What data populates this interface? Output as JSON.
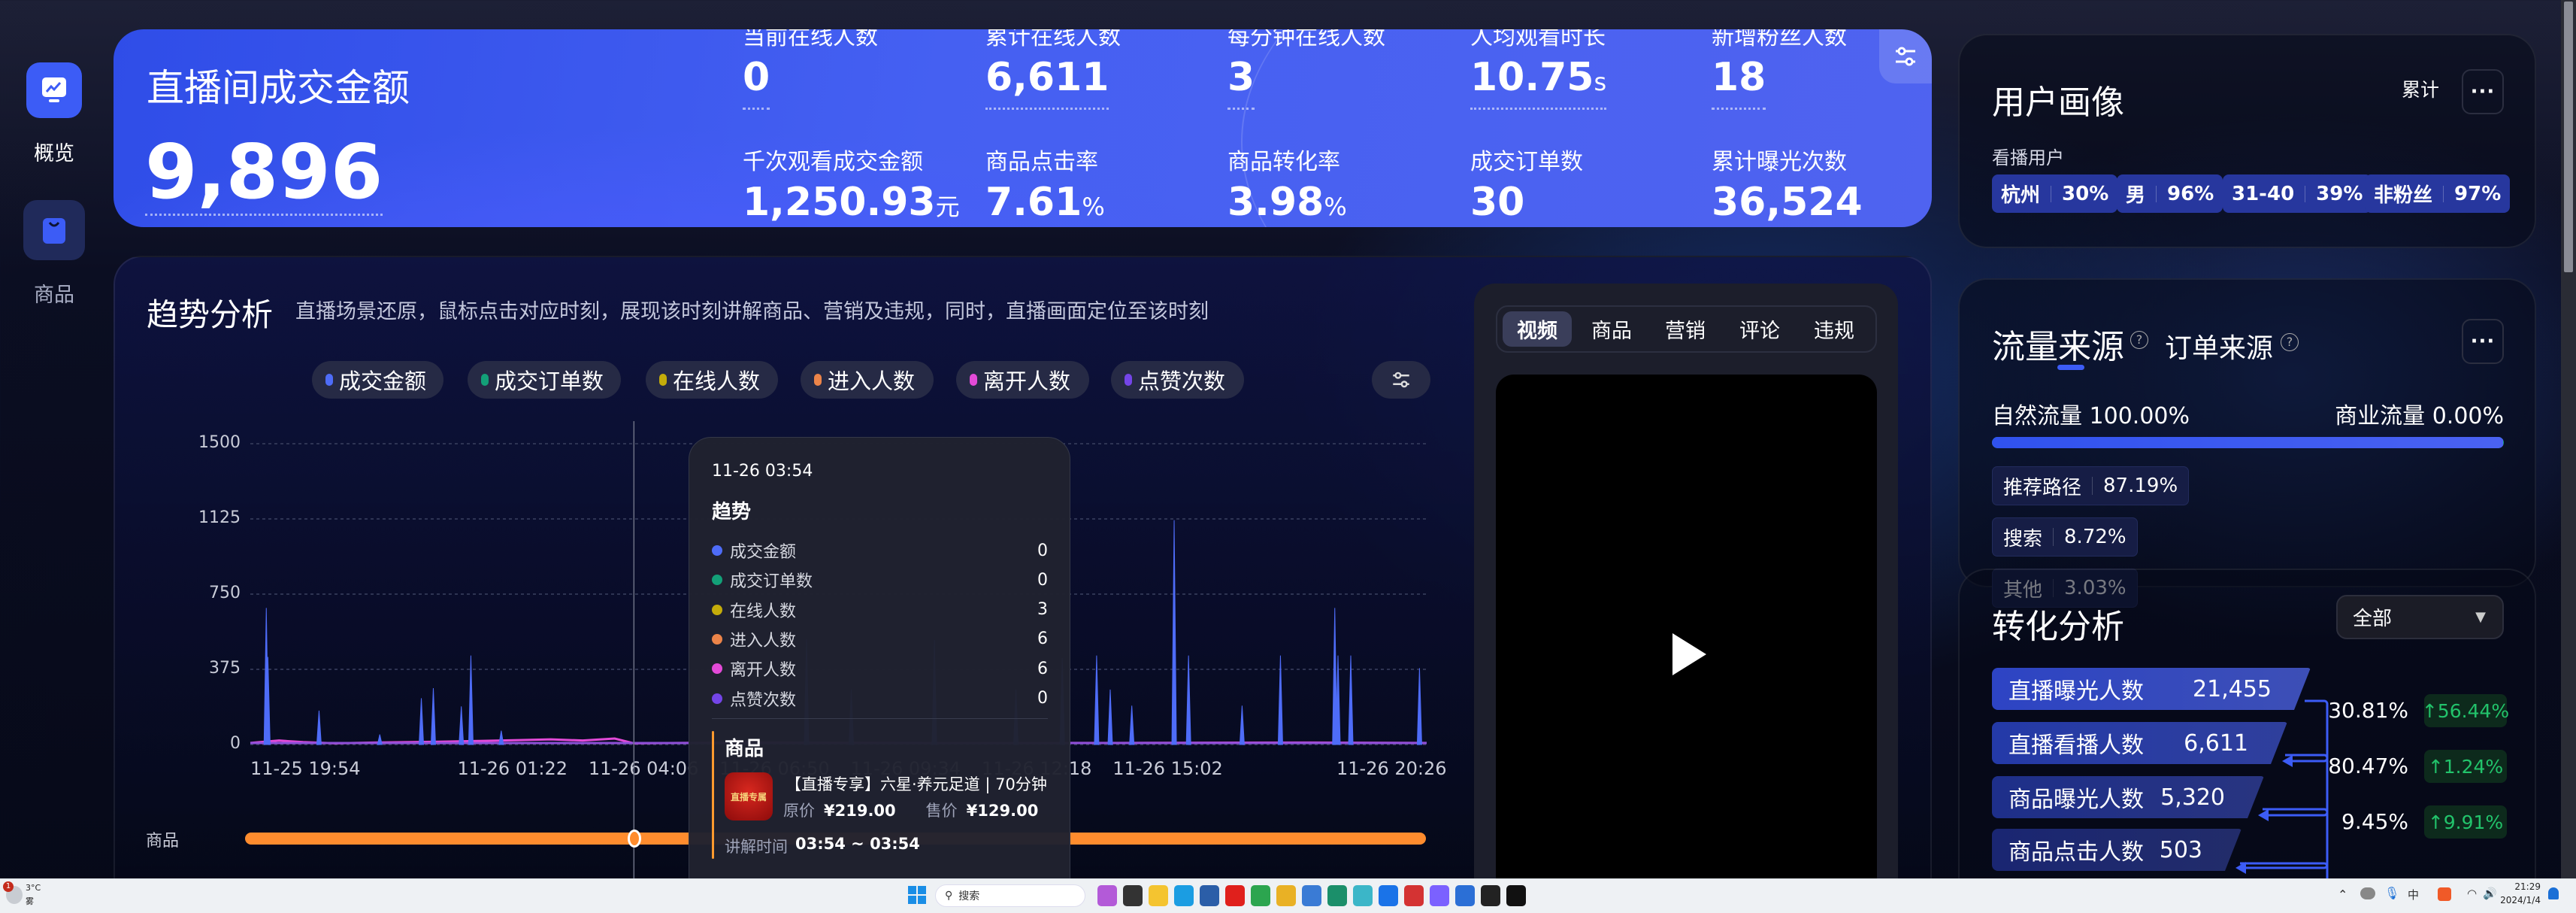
{
  "sidebar": {
    "items": [
      {
        "label": "概览",
        "icon": "chart-up-icon",
        "active": true
      },
      {
        "label": "商品",
        "icon": "shopping-bag-icon",
        "active": false
      }
    ]
  },
  "banner": {
    "title": "直播间成交金额",
    "value": "9,896",
    "metrics": [
      {
        "label": "当前在线人数",
        "value": "0",
        "unit": ""
      },
      {
        "label": "累计在线人数",
        "value": "6,611",
        "unit": ""
      },
      {
        "label": "每分钟在线人数",
        "value": "3",
        "unit": ""
      },
      {
        "label": "人均观看时长",
        "value": "10.75",
        "unit": "s"
      },
      {
        "label": "新增粉丝人数",
        "value": "18",
        "unit": ""
      },
      {
        "label": "千次观看成交金额",
        "value": "1,250.93",
        "unit": "元"
      },
      {
        "label": "商品点击率",
        "value": "7.61",
        "unit": "%"
      },
      {
        "label": "商品转化率",
        "value": "3.98",
        "unit": "%"
      },
      {
        "label": "成交订单数",
        "value": "30",
        "unit": ""
      },
      {
        "label": "累计曝光次数",
        "value": "36,524",
        "unit": ""
      }
    ],
    "settings_icon": "sliders-icon"
  },
  "trend": {
    "title": "趋势分析",
    "subtitle": "直播场景还原，鼠标点击对应时刻，展现该时刻讲解商品、营销及违规，同时，直播画面定位至该时刻",
    "chips": [
      {
        "label": "成交金额",
        "color": "#4e6cf8"
      },
      {
        "label": "成交订单数",
        "color": "#13a078"
      },
      {
        "label": "在线人数",
        "color": "#c4ac0a"
      },
      {
        "label": "进入人数",
        "color": "#ec8449"
      },
      {
        "label": "离开人数",
        "color": "#e34ad8"
      },
      {
        "label": "点赞次数",
        "color": "#7445e8"
      }
    ],
    "goods_track_label": "商品",
    "goods_track_color": "#ff8c2e",
    "tooltip": {
      "time": "11-26 03:54",
      "section_trend": "趋势",
      "rows": [
        {
          "label": "成交金额",
          "value": "0",
          "color": "#4e6cf8"
        },
        {
          "label": "成交订单数",
          "value": "0",
          "color": "#13a078"
        },
        {
          "label": "在线人数",
          "value": "3",
          "color": "#c4ac0a"
        },
        {
          "label": "进入人数",
          "value": "6",
          "color": "#ec8449"
        },
        {
          "label": "离开人数",
          "value": "6",
          "color": "#e34ad8"
        },
        {
          "label": "点赞次数",
          "value": "0",
          "color": "#7445e8"
        }
      ],
      "section_goods": "商品",
      "product_name": "【直播专享】六星·养元足道 | 70分钟",
      "product_image_text": "直播专属",
      "original_price_label": "原价",
      "original_price": "¥219.00",
      "sale_price_label": "售价",
      "sale_price": "¥129.00",
      "explain_label": "讲解时间",
      "explain_time": "03:54 ~ 03:54"
    }
  },
  "chart_data": {
    "type": "line",
    "title": "",
    "xlabel": "",
    "ylabel": "",
    "ylim": [
      0,
      1500
    ],
    "yticks": [
      "0",
      "375",
      "750",
      "1125",
      "1500"
    ],
    "x_range": [
      "11-25 19:54",
      "11-26 20:26"
    ],
    "xticks": [
      "11-25 19:54",
      "11-26 01:22",
      "11-26 04:06",
      "11-26 06:50",
      "11-26 09:34",
      "11-26 12:18",
      "11-26 15:02",
      "11-26 20:26"
    ],
    "grid": true,
    "crosshair": "11-26 03:54",
    "series": [
      {
        "name": "成交金额",
        "color": "#4e6cf8",
        "points": [
          [
            "11-25 20:14",
            681
          ],
          [
            "11-25 20:16",
            437
          ],
          [
            "11-25 21:20",
            169
          ],
          [
            "11-25 22:36",
            50
          ],
          [
            "11-25 23:28",
            231
          ],
          [
            "11-25 23:43",
            281
          ],
          [
            "11-26 00:18",
            190
          ],
          [
            "11-26 00:30",
            444
          ],
          [
            "11-26 01:08",
            69
          ],
          [
            "11-26 07:30",
            525
          ],
          [
            "11-26 08:26",
            274
          ],
          [
            "11-26 10:10",
            521
          ],
          [
            "11-26 11:52",
            274
          ],
          [
            "11-26 12:50",
            431
          ],
          [
            "11-26 13:50",
            274
          ],
          [
            "11-26 13:33",
            444
          ],
          [
            "11-26 14:17",
            194
          ],
          [
            "11-26 15:10",
            1119
          ],
          [
            "11-26 15:28",
            444
          ],
          [
            "11-26 16:35",
            194
          ],
          [
            "11-26 17:23",
            444
          ],
          [
            "11-26 18:31",
            681
          ],
          [
            "11-26 18:35",
            444
          ],
          [
            "11-26 18:51",
            444
          ],
          [
            "11-26 20:17",
            381
          ]
        ]
      },
      {
        "name": "离开人数",
        "color": "#e34ad8",
        "points": [
          [
            "11-25 19:54",
            8
          ],
          [
            "11-25 20:30",
            20
          ],
          [
            "11-25 21:00",
            12
          ],
          [
            "11-25 21:40",
            6
          ],
          [
            "11-25 22:30",
            10
          ],
          [
            "11-25 23:50",
            14
          ],
          [
            "11-26 00:40",
            18
          ],
          [
            "11-26 01:30",
            22
          ],
          [
            "11-26 02:10",
            26
          ],
          [
            "11-26 02:50",
            20
          ],
          [
            "11-26 03:30",
            30
          ],
          [
            "11-26 03:54",
            6
          ],
          [
            "11-26 06:00",
            10
          ],
          [
            "11-26 10:00",
            8
          ],
          [
            "11-26 14:00",
            8
          ],
          [
            "11-26 18:00",
            10
          ],
          [
            "11-26 20:26",
            8
          ]
        ]
      }
    ]
  },
  "video": {
    "tabs": [
      "视频",
      "商品",
      "营销",
      "评论",
      "违规"
    ],
    "active_tab": 0,
    "play_icon": "play-icon"
  },
  "portrait": {
    "title": "用户画像",
    "mode": "累计",
    "more": "···",
    "sub": "看播用户",
    "tags": [
      {
        "label": "杭州",
        "value": "30%"
      },
      {
        "label": "男",
        "value": "96%"
      },
      {
        "label": "31-40",
        "value": "39%"
      },
      {
        "label": "非粉丝",
        "value": "97%"
      }
    ]
  },
  "traffic": {
    "tab_active": "流量来源",
    "tab_other": "订单来源",
    "more": "···",
    "natural": "自然流量 100.00%",
    "commercial": "商业流量 0.00%",
    "natural_fraction": 0.999,
    "sources": [
      {
        "label": "推荐路径",
        "value": "87.19%"
      },
      {
        "label": "搜索",
        "value": "8.72%"
      },
      {
        "label": "其他",
        "value": "3.03%"
      }
    ]
  },
  "conversion": {
    "title": "转化分析",
    "filter": "全部",
    "steps": [
      {
        "label": "直播曝光人数",
        "value": "21,455"
      },
      {
        "label": "直播看播人数",
        "value": "6,611"
      },
      {
        "label": "商品曝光人数",
        "value": "5,320"
      },
      {
        "label": "商品点击人数",
        "value": "503"
      }
    ],
    "rates": [
      {
        "rate": "30.81%",
        "change": "↑56.44%"
      },
      {
        "rate": "80.47%",
        "change": "↑1.24%"
      },
      {
        "rate": "9.45%",
        "change": "↑9.91%"
      }
    ]
  },
  "taskbar": {
    "weather_temp": "3°C",
    "weather_desc": "雾",
    "weather_badge": "1",
    "search_placeholder": "搜索",
    "time": "21:29",
    "date": "2024/1/4",
    "ime": "中"
  }
}
